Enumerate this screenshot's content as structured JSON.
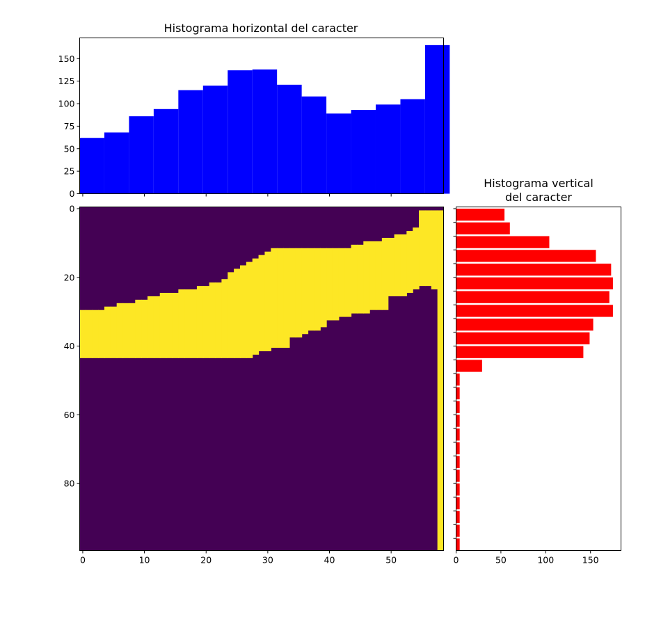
{
  "chart_data": [
    {
      "type": "bar",
      "title": "Histograma horizontal del caracter",
      "color": "#0000ff",
      "x": [
        0,
        4,
        8,
        12,
        16,
        20,
        24,
        28,
        32,
        36,
        40,
        44,
        48,
        52,
        56
      ],
      "values": [
        62,
        68,
        86,
        94,
        115,
        120,
        137,
        138,
        121,
        108,
        89,
        93,
        99,
        105,
        165
      ],
      "xlim": [
        -0.5,
        58.5
      ],
      "ylim": [
        0,
        173
      ],
      "yticks": [
        0,
        25,
        50,
        75,
        100,
        125,
        150
      ],
      "ytick_labels": [
        "0",
        "25",
        "50",
        "75",
        "100",
        "125",
        "150"
      ],
      "grid": false
    },
    {
      "type": "heatmap",
      "colormap": "viridis",
      "low_color": "#440154",
      "high_color": "#fde725",
      "width": 59,
      "height": 100,
      "value_range": [
        0,
        1
      ],
      "band_top": [
        30,
        30,
        30,
        30,
        29,
        29,
        28,
        28,
        28,
        27,
        27,
        26,
        26,
        25,
        25,
        25,
        24,
        24,
        24,
        23,
        23,
        22,
        22,
        21,
        19,
        18,
        17,
        16,
        15,
        14,
        13,
        12,
        12,
        12,
        12,
        12,
        12,
        12,
        12,
        12,
        12,
        12,
        12,
        12,
        11,
        11,
        10,
        10,
        10,
        9,
        9,
        8,
        8,
        7,
        6,
        1,
        1,
        1,
        1
      ],
      "band_bottom": [
        44,
        44,
        44,
        44,
        44,
        44,
        44,
        44,
        44,
        44,
        44,
        44,
        44,
        44,
        44,
        44,
        44,
        44,
        44,
        44,
        44,
        44,
        44,
        44,
        44,
        44,
        44,
        44,
        43,
        42,
        42,
        41,
        41,
        41,
        38,
        38,
        37,
        36,
        36,
        35,
        33,
        33,
        32,
        32,
        31,
        31,
        31,
        30,
        30,
        30,
        26,
        26,
        26,
        25,
        24,
        23,
        23,
        24,
        100
      ],
      "xticks": [
        0,
        10,
        20,
        30,
        40,
        50
      ],
      "xtick_labels": [
        "0",
        "10",
        "20",
        "30",
        "40",
        "50"
      ],
      "yticks": [
        0,
        20,
        40,
        60,
        80
      ],
      "ytick_labels": [
        "0",
        "20",
        "40",
        "60",
        "80"
      ]
    },
    {
      "type": "bar",
      "orientation": "horizontal",
      "title": [
        "Histograma vertical",
        "del caracter"
      ],
      "color": "#ff0000",
      "y": [
        0,
        4,
        8,
        12,
        16,
        20,
        24,
        28,
        32,
        36,
        40,
        44,
        48,
        52,
        56,
        60,
        64,
        68,
        72,
        76,
        80,
        84,
        88,
        92,
        96
      ],
      "values": [
        54,
        60,
        104,
        156,
        173,
        175,
        171,
        175,
        153,
        149,
        142,
        29,
        4,
        4,
        4,
        4,
        4,
        4,
        4,
        4,
        4,
        4,
        4,
        4,
        4
      ],
      "xlim": [
        0,
        184
      ],
      "xticks": [
        0,
        50,
        100,
        150
      ],
      "xtick_labels": [
        "0",
        "50",
        "100",
        "150"
      ],
      "grid": false
    }
  ]
}
